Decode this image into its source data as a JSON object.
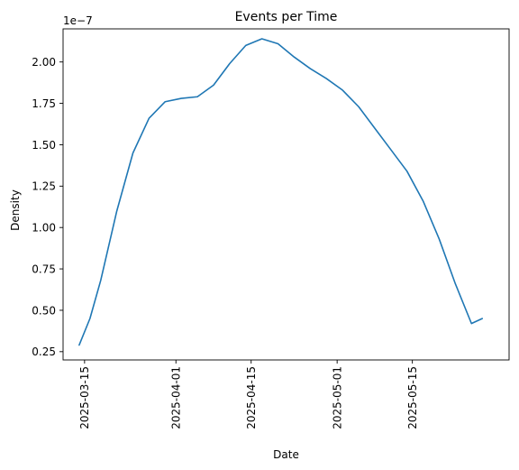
{
  "chart_data": {
    "type": "line",
    "title": "Events per Time",
    "xlabel": "Date",
    "ylabel": "Density",
    "y_offset_text": "1e−7",
    "y_scale": 1e-07,
    "grid": false,
    "x_ticks": [
      "2025-03-15",
      "2025-04-01",
      "2025-04-15",
      "2025-05-01",
      "2025-05-15"
    ],
    "y_ticks": [
      "0.25",
      "0.50",
      "0.75",
      "1.00",
      "1.25",
      "1.50",
      "1.75",
      "2.00"
    ],
    "xlim": [
      "2025-03-11",
      "2025-06-02"
    ],
    "ylim": [
      0.2,
      2.2
    ],
    "series": [
      {
        "color": "#1f77b4",
        "x": [
          "2025-03-14",
          "2025-03-16",
          "2025-03-18",
          "2025-03-21",
          "2025-03-24",
          "2025-03-27",
          "2025-03-30",
          "2025-04-02",
          "2025-04-05",
          "2025-04-08",
          "2025-04-11",
          "2025-04-14",
          "2025-04-17",
          "2025-04-20",
          "2025-04-23",
          "2025-04-26",
          "2025-04-29",
          "2025-05-02",
          "2025-05-05",
          "2025-05-08",
          "2025-05-11",
          "2025-05-14",
          "2025-05-17",
          "2025-05-20",
          "2025-05-23",
          "2025-05-26",
          "2025-05-28"
        ],
        "y": [
          0.29,
          0.45,
          0.68,
          1.1,
          1.45,
          1.66,
          1.76,
          1.78,
          1.79,
          1.86,
          1.99,
          2.1,
          2.14,
          2.11,
          2.03,
          1.96,
          1.9,
          1.83,
          1.73,
          1.6,
          1.47,
          1.34,
          1.16,
          0.93,
          0.66,
          0.42,
          0.45
        ]
      }
    ]
  }
}
